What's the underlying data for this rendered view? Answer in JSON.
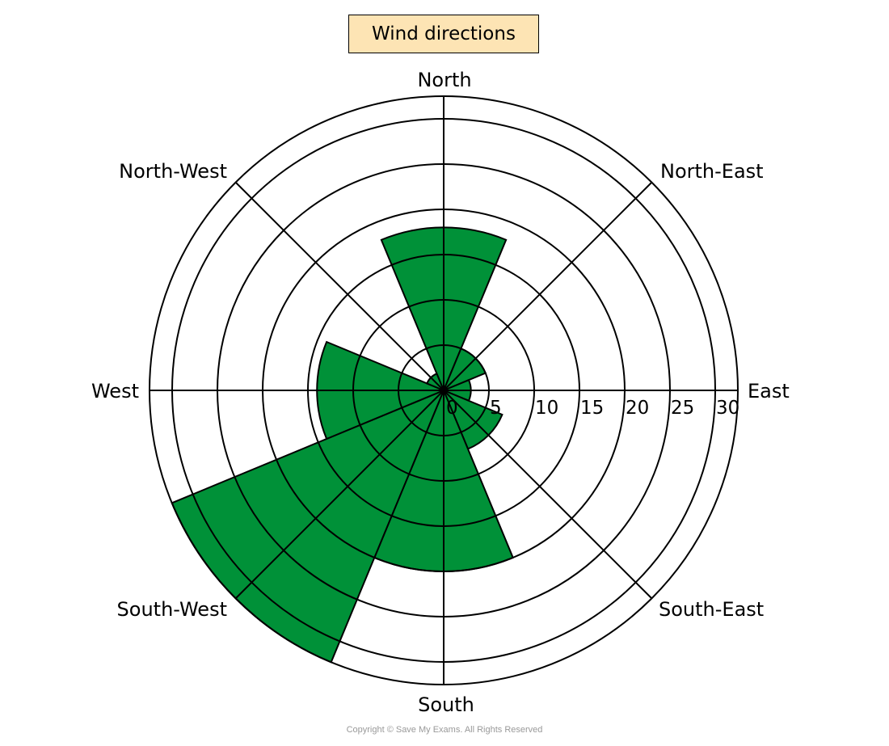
{
  "chart_data": {
    "type": "polar-bar",
    "title": "Wind directions",
    "categories": [
      "North",
      "North-East",
      "East",
      "South-East",
      "South",
      "South-West",
      "West",
      "North-West"
    ],
    "bearings_deg": [
      0,
      45,
      90,
      135,
      180,
      225,
      270,
      315
    ],
    "sector_width_deg": 45,
    "values": [
      18,
      5,
      3,
      7,
      20,
      32.5,
      14,
      2
    ],
    "radial_ticks": [
      0,
      5,
      10,
      15,
      20,
      25,
      30
    ],
    "radial_tick_labels": [
      "0",
      "5",
      "10",
      "15",
      "20",
      "25",
      "30"
    ],
    "rlim": [
      0,
      32.5
    ],
    "grid": true,
    "bar_color": "#009138",
    "title_box_color": "#fde4b4"
  },
  "footer": {
    "copyright": "Copyright © Save My Exams. All Rights Reserved"
  }
}
